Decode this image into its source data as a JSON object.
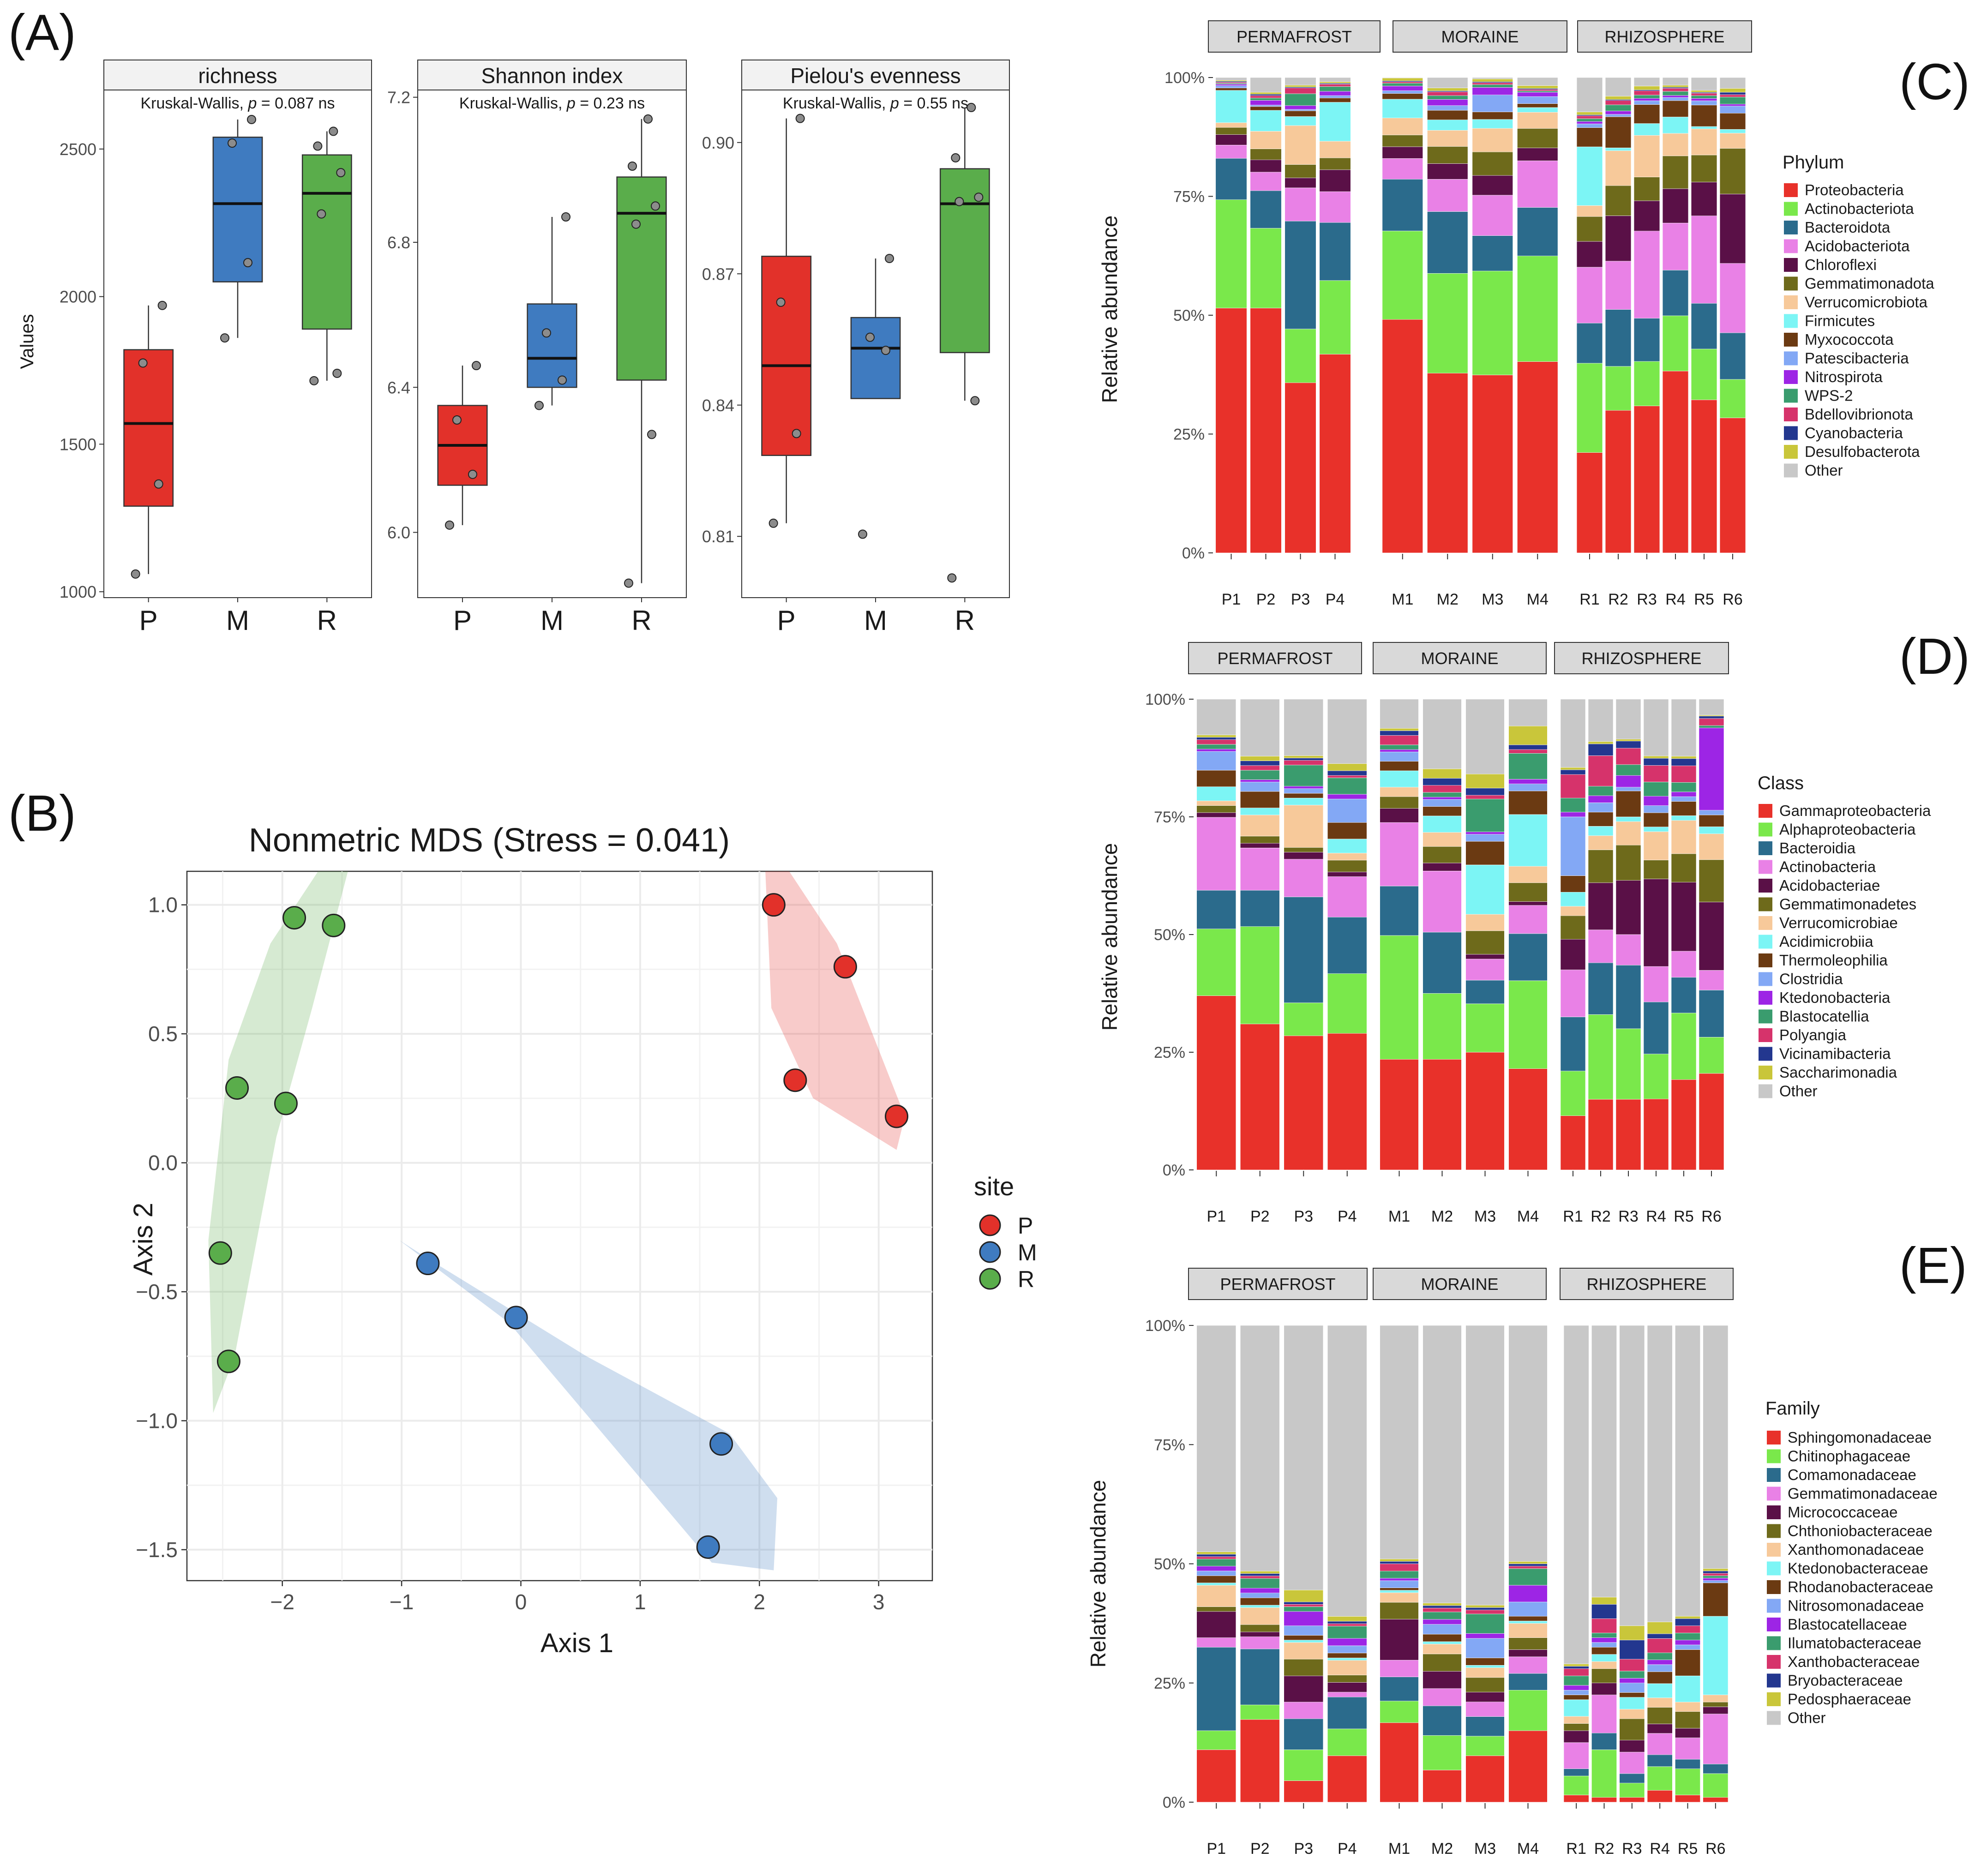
{
  "colors": {
    "P": "#e2312a",
    "M": "#3f7bc0",
    "R": "#5aad4b",
    "strip_bg": "#d9d9d9",
    "grid": "#ebebeb"
  },
  "panel_A": {
    "letter": "(A)",
    "ylabel": "Values",
    "groups": [
      "P",
      "M",
      "R"
    ],
    "facets": [
      {
        "title": "richness",
        "stat_prefix": "Kruskal-Wallis, ",
        "stat_p": "p",
        "stat_suffix": " = 0.087 ns",
        "ylim": [
          980,
          2700
        ],
        "yticks": [
          1000,
          1500,
          2000,
          2500
        ],
        "yticklabels": [
          "1000",
          "1500",
          "2000",
          "2500"
        ],
        "boxes": [
          {
            "group": "P",
            "q1": 1290,
            "median": 1570,
            "q3": 1820,
            "lo": 1060,
            "hi": 1970,
            "points": [
              1060,
              1365,
              1775,
              1970
            ]
          },
          {
            "group": "M",
            "q1": 2050,
            "median": 2315,
            "q3": 2540,
            "lo": 1860,
            "hi": 2600,
            "points": [
              1860,
              2115,
              2520,
              2600
            ]
          },
          {
            "group": "R",
            "q1": 1890,
            "median": 2350,
            "q3": 2480,
            "lo": 1715,
            "hi": 2560,
            "points": [
              1715,
              1740,
              2280,
              2420,
              2510,
              2560
            ]
          }
        ]
      },
      {
        "title": "Shannon index",
        "stat_prefix": "Kruskal-Wallis, ",
        "stat_p": "p",
        "stat_suffix": " = 0.23 ns",
        "ylim": [
          5.82,
          7.22
        ],
        "yticks": [
          6.0,
          6.4,
          6.8,
          7.2
        ],
        "yticklabels": [
          "6.0",
          "6.4",
          "6.8",
          "7.2"
        ],
        "boxes": [
          {
            "group": "P",
            "q1": 6.13,
            "median": 6.24,
            "q3": 6.35,
            "lo": 6.02,
            "hi": 6.46,
            "points": [
              6.02,
              6.16,
              6.31,
              6.46
            ]
          },
          {
            "group": "M",
            "q1": 6.4,
            "median": 6.48,
            "q3": 6.63,
            "lo": 6.35,
            "hi": 6.87,
            "points": [
              6.35,
              6.42,
              6.55,
              6.87
            ]
          },
          {
            "group": "R",
            "q1": 6.42,
            "median": 6.88,
            "q3": 6.98,
            "lo": 5.86,
            "hi": 7.14,
            "points": [
              5.86,
              6.27,
              6.85,
              6.9,
              7.01,
              7.14
            ]
          }
        ]
      },
      {
        "title": "Pielou's evenness",
        "stat_prefix": "Kruskal-Wallis, ",
        "stat_p": "p",
        "stat_suffix": " = 0.55 ns",
        "ylim": [
          0.796,
          0.912
        ],
        "yticks": [
          0.81,
          0.84,
          0.87,
          0.9
        ],
        "yticklabels": [
          "0.81",
          "0.84",
          "0.87",
          "0.90"
        ],
        "boxes": [
          {
            "group": "P",
            "q1": 0.8285,
            "median": 0.849,
            "q3": 0.874,
            "lo": 0.813,
            "hi": 0.9055,
            "points": [
              0.813,
              0.8335,
              0.8635,
              0.9055
            ]
          },
          {
            "group": "M",
            "q1": 0.8415,
            "median": 0.853,
            "q3": 0.86,
            "lo": 0.8415,
            "hi": 0.8735,
            "points": [
              0.8105,
              0.8525,
              0.8555,
              0.8735
            ]
          },
          {
            "group": "R",
            "q1": 0.852,
            "median": 0.886,
            "q3": 0.894,
            "lo": 0.841,
            "hi": 0.908,
            "points": [
              0.8005,
              0.841,
              0.8865,
              0.8875,
              0.8965,
              0.908
            ]
          }
        ]
      }
    ]
  },
  "panel_B": {
    "letter": "(B)",
    "title": "Nonmetric MDS (Stress = 0.041)",
    "xlabel": "Axis 1",
    "ylabel": "Axis 2",
    "xlim": [
      -2.8,
      3.45
    ],
    "ylim": [
      -1.62,
      1.13
    ],
    "xticks": [
      -2,
      -1,
      0,
      1,
      2,
      3
    ],
    "xticklabels": [
      "−2",
      "−1",
      "0",
      "1",
      "2",
      "3"
    ],
    "yticks": [
      -1.5,
      -1.0,
      -0.5,
      0.0,
      0.5,
      1.0
    ],
    "yticklabels": [
      "−1.5",
      "−1.0",
      "−0.5",
      "0.0",
      "0.5",
      "1.0"
    ],
    "legend_title": "site",
    "legend": [
      "P",
      "M",
      "R"
    ],
    "points": {
      "P": [
        [
          2.12,
          1.0
        ],
        [
          2.72,
          0.76
        ],
        [
          2.3,
          0.32
        ],
        [
          3.15,
          0.18
        ]
      ],
      "M": [
        [
          -0.78,
          -0.39
        ],
        [
          -0.04,
          -0.6
        ],
        [
          1.68,
          -1.09
        ],
        [
          1.57,
          -1.49
        ]
      ],
      "R": [
        [
          -1.9,
          0.95
        ],
        [
          -1.57,
          0.92
        ],
        [
          -2.38,
          0.29
        ],
        [
          -1.97,
          0.23
        ],
        [
          -2.52,
          -0.35
        ],
        [
          -2.45,
          -0.77
        ]
      ]
    }
  },
  "stacked_ylabel": "Relative abundance",
  "stacked_yticklabels": [
    "0%",
    "25%",
    "50%",
    "75%",
    "100%"
  ],
  "site_strips": [
    "PERMAFROST",
    "MORAINE",
    "RHIZOSPHERE"
  ],
  "sample_groups": [
    [
      "P1",
      "P2",
      "P3",
      "P4"
    ],
    [
      "M1",
      "M2",
      "M3",
      "M4"
    ],
    [
      "R1",
      "R2",
      "R3",
      "R4",
      "R5",
      "R6"
    ]
  ],
  "panel_C": {
    "letter": "(C)",
    "legend_title": "Phylum",
    "taxa": [
      "Proteobacteria",
      "Actinobacteriota",
      "Bacteroidota",
      "Acidobacteriota",
      "Chloroflexi",
      "Gemmatimonadota",
      "Verrucomicrobiota",
      "Firmicutes",
      "Myxococcota",
      "Patescibacteria",
      "Nitrospirota",
      "WPS-2",
      "Bdellovibrionota",
      "Cyanobacteria",
      "Desulfobacterota",
      "Other"
    ],
    "colors": [
      "#e8312a",
      "#7ae84b",
      "#2b6b8c",
      "#e981e6",
      "#5a1047",
      "#6e6a1b",
      "#f7c99a",
      "#7cf5f5",
      "#6b3a12",
      "#83a8f5",
      "#9d25e5",
      "#3a9c6e",
      "#d6336b",
      "#23378f",
      "#c9c63a",
      "#c8c8c8"
    ],
    "samples": [
      "P1",
      "P2",
      "P3",
      "P4",
      "M1",
      "M2",
      "M3",
      "M4",
      "R1",
      "R2",
      "R3",
      "R4",
      "R5",
      "R6"
    ],
    "values": [
      [
        51.5,
        22.8,
        8.7,
        2.8,
        2.2,
        1.5,
        1.0,
        6.8,
        0.5,
        0.5,
        0.3,
        0.2,
        0.2,
        0.2,
        0.2,
        0.6
      ],
      [
        51.5,
        16.8,
        7.9,
        3.9,
        2.6,
        2.3,
        3.7,
        4.4,
        0.8,
        0.3,
        1.0,
        0.5,
        0.5,
        0.3,
        0.4,
        3.1
      ],
      [
        35.8,
        11.3,
        22.7,
        7.0,
        2.1,
        2.8,
        8.2,
        1.9,
        1.2,
        0.3,
        0.8,
        2.5,
        1.2,
        0.2,
        0.4,
        1.6
      ],
      [
        41.8,
        15.5,
        12.2,
        6.5,
        4.6,
        2.5,
        3.5,
        8.2,
        0.9,
        0.5,
        0.9,
        1.0,
        0.5,
        0.2,
        0.3,
        0.9
      ],
      [
        49.6,
        18.8,
        11.0,
        4.4,
        2.5,
        2.5,
        3.6,
        4.0,
        1.2,
        0.6,
        1.0,
        0.6,
        0.3,
        0.2,
        0.6,
        0.1
      ],
      [
        37.8,
        21.0,
        13.0,
        6.8,
        3.3,
        3.6,
        3.4,
        2.2,
        2.0,
        1.0,
        1.3,
        0.8,
        0.8,
        0.2,
        0.6,
        2.2
      ],
      [
        37.8,
        22.1,
        7.5,
        8.6,
        4.2,
        5.0,
        5.0,
        1.9,
        1.6,
        3.6,
        1.6,
        0.6,
        0.4,
        0.2,
        0.6,
        0.3
      ],
      [
        40.2,
        22.2,
        10.2,
        9.8,
        2.7,
        4.1,
        3.4,
        1.0,
        0.8,
        1.5,
        0.9,
        0.3,
        0.3,
        0.2,
        0.6,
        1.7
      ],
      [
        21.0,
        18.7,
        8.4,
        11.7,
        5.4,
        5.2,
        2.3,
        12.3,
        4.0,
        0.8,
        0.5,
        0.6,
        0.6,
        0.2,
        0.6,
        7.2
      ],
      [
        29.8,
        9.2,
        11.9,
        10.1,
        9.5,
        6.3,
        7.3,
        0.6,
        6.5,
        0.5,
        0.7,
        1.3,
        0.9,
        0.2,
        0.7,
        3.9
      ],
      [
        31.0,
        9.4,
        9.1,
        18.4,
        6.4,
        5.0,
        8.8,
        2.5,
        4.0,
        0.8,
        0.5,
        0.7,
        0.9,
        0.2,
        0.8,
        1.8
      ],
      [
        35.5,
        10.8,
        8.9,
        9.2,
        6.7,
        6.4,
        4.4,
        3.2,
        3.2,
        0.6,
        0.4,
        0.8,
        0.6,
        0.2,
        0.4,
        1.5
      ],
      [
        32.2,
        10.7,
        9.6,
        18.4,
        7.1,
        5.7,
        5.5,
        0.5,
        4.5,
        0.9,
        0.5,
        0.6,
        0.5,
        0.2,
        0.4,
        2.7
      ],
      [
        28.4,
        8.1,
        9.8,
        14.6,
        14.6,
        9.6,
        3.2,
        0.8,
        3.4,
        1.5,
        0.4,
        1.5,
        0.5,
        0.5,
        0.8,
        2.3
      ]
    ]
  },
  "panel_D": {
    "letter": "(D)",
    "legend_title": "Class",
    "taxa": [
      "Gammaproteobacteria",
      "Alphaproteobacteria",
      "Bacteroidia",
      "Actinobacteria",
      "Acidobacteriae",
      "Gemmatimonadetes",
      "Verrucomicrobiae",
      "Acidimicrobiia",
      "Thermoleophilia",
      "Clostridia",
      "Ktedonobacteria",
      "Blastocatellia",
      "Polyangia",
      "Vicinamibacteria",
      "Saccharimonadia",
      "Other"
    ],
    "colors": [
      "#e8312a",
      "#7ae84b",
      "#2b6b8c",
      "#e981e6",
      "#5a1047",
      "#6e6a1b",
      "#f7c99a",
      "#7cf5f5",
      "#6b3a12",
      "#83a8f5",
      "#9d25e5",
      "#3a9c6e",
      "#d6336b",
      "#23378f",
      "#c9c63a",
      "#c8c8c8"
    ],
    "samples": [
      "P1",
      "P2",
      "P3",
      "P4",
      "M1",
      "M2",
      "M3",
      "M4",
      "R1",
      "R2",
      "R3",
      "R4",
      "R5",
      "R6"
    ],
    "values": [
      [
        37.0,
        14.2,
        8.2,
        15.5,
        1.0,
        1.5,
        1.0,
        3.0,
        3.5,
        4.0,
        0.5,
        1.0,
        1.0,
        0.5,
        0.5,
        7.6
      ],
      [
        31.0,
        20.7,
        7.7,
        9.0,
        1.0,
        1.5,
        4.5,
        1.5,
        3.5,
        2.0,
        0.5,
        2.0,
        1.0,
        1.0,
        1.0,
        12.1
      ],
      [
        28.5,
        7.0,
        22.5,
        8.0,
        1.5,
        1.0,
        9.0,
        1.5,
        1.0,
        1.0,
        0.5,
        4.5,
        1.0,
        0.5,
        0.5,
        12.0
      ],
      [
        29.0,
        12.7,
        12.0,
        8.6,
        1.0,
        2.5,
        1.5,
        3.0,
        3.5,
        5.0,
        1.0,
        3.5,
        0.5,
        1.0,
        1.5,
        13.7
      ],
      [
        23.5,
        26.3,
        10.5,
        13.5,
        3.0,
        2.5,
        2.0,
        3.5,
        2.0,
        2.0,
        0.5,
        1.0,
        2.0,
        1.0,
        0.5,
        6.2
      ],
      [
        23.5,
        14.0,
        13.0,
        13.0,
        1.7,
        3.5,
        3.0,
        3.5,
        2.0,
        1.5,
        0.5,
        1.0,
        1.5,
        1.5,
        2.0,
        14.8
      ],
      [
        25.0,
        10.3,
        5.0,
        4.5,
        1.0,
        5.0,
        3.5,
        10.5,
        5.0,
        1.5,
        0.5,
        7.0,
        0.8,
        1.5,
        3.0,
        15.9
      ],
      [
        21.5,
        18.7,
        10.0,
        6.0,
        0.8,
        4.0,
        3.5,
        11.0,
        5.0,
        1.5,
        1.0,
        5.5,
        0.8,
        1.0,
        4.0,
        5.7
      ],
      [
        11.5,
        9.5,
        11.5,
        10.0,
        6.5,
        5.0,
        2.0,
        3.0,
        3.5,
        12.5,
        1.0,
        3.0,
        5.0,
        1.0,
        0.5,
        14.5
      ],
      [
        15.0,
        18.0,
        11.0,
        7.0,
        10.0,
        7.0,
        3.0,
        2.0,
        3.0,
        2.0,
        1.5,
        2.0,
        6.5,
        2.5,
        0.5,
        9.0
      ],
      [
        15.0,
        15.0,
        13.5,
        6.5,
        11.5,
        7.5,
        5.0,
        1.0,
        5.5,
        0.8,
        2.5,
        2.3,
        3.5,
        1.5,
        0.4,
        8.5
      ],
      [
        15.0,
        9.5,
        11.0,
        7.5,
        18.5,
        4.0,
        6.0,
        1.0,
        3.0,
        1.5,
        2.0,
        3.0,
        3.5,
        1.5,
        0.5,
        12.0
      ],
      [
        19.0,
        14.0,
        7.5,
        5.5,
        14.5,
        6.0,
        7.0,
        1.0,
        3.0,
        1.0,
        1.0,
        2.0,
        3.5,
        1.5,
        0.5,
        12.0
      ],
      [
        20.5,
        7.7,
        10.0,
        4.2,
        14.5,
        9.0,
        5.5,
        1.5,
        2.5,
        1.0,
        17.5,
        0.5,
        1.5,
        0.5,
        0.2,
        3.4
      ]
    ]
  },
  "panel_E": {
    "letter": "(E)",
    "legend_title": "Family",
    "taxa": [
      "Sphingomonadaceae",
      "Chitinophagaceae",
      "Comamonadaceae",
      "Gemmatimonadaceae",
      "Micrococcaceae",
      "Chthoniobacteraceae",
      "Xanthomonadaceae",
      "Ktedonobacteraceae",
      "Rhodanobacteraceae",
      "Nitrosomonadaceae",
      "Blastocatellaceae",
      "Ilumatobacteraceae",
      "Xanthobacteraceae",
      "Bryobacteraceae",
      "Pedosphaeraceae",
      "Other"
    ],
    "colors": [
      "#e8312a",
      "#7ae84b",
      "#2b6b8c",
      "#e981e6",
      "#5a1047",
      "#6e6a1b",
      "#f7c99a",
      "#7cf5f5",
      "#6b3a12",
      "#83a8f5",
      "#9d25e5",
      "#3a9c6e",
      "#d6336b",
      "#23378f",
      "#c9c63a",
      "#c8c8c8"
    ],
    "samples": [
      "P1",
      "P2",
      "P3",
      "P4",
      "M1",
      "M2",
      "M3",
      "M4",
      "R1",
      "R2",
      "R3",
      "R4",
      "R5",
      "R6"
    ],
    "values": [
      [
        11.0,
        4.0,
        17.5,
        2.0,
        5.5,
        1.0,
        4.5,
        0.5,
        1.5,
        1.0,
        1.0,
        1.5,
        0.5,
        0.5,
        0.5,
        47.5
      ],
      [
        17.0,
        3.0,
        11.5,
        2.5,
        1.0,
        1.5,
        3.5,
        0.5,
        1.5,
        1.0,
        1.0,
        2.0,
        0.5,
        0.5,
        0.5,
        50.5
      ],
      [
        4.5,
        6.5,
        6.5,
        3.5,
        5.5,
        3.5,
        3.5,
        0.5,
        1.0,
        2.0,
        3.0,
        1.0,
        0.5,
        0.5,
        2.5,
        55.5
      ],
      [
        9.5,
        5.5,
        6.5,
        1.0,
        2.0,
        1.5,
        3.0,
        0.5,
        1.0,
        1.5,
        1.5,
        2.5,
        0.5,
        0.5,
        1.0,
        59.5
      ],
      [
        16.5,
        4.5,
        5.0,
        3.5,
        8.5,
        3.5,
        2.0,
        0.5,
        0.5,
        1.5,
        0.5,
        1.5,
        1.5,
        0.5,
        0.5,
        48.5
      ],
      [
        6.5,
        7.0,
        6.0,
        3.5,
        3.5,
        3.5,
        2.0,
        0.5,
        1.5,
        2.0,
        1.0,
        1.5,
        0.8,
        0.5,
        0.5,
        56.2
      ],
      [
        9.5,
        4.0,
        4.0,
        3.0,
        2.0,
        3.0,
        2.0,
        0.5,
        1.5,
        4.0,
        1.0,
        4.0,
        0.8,
        0.5,
        0.5,
        57.2
      ],
      [
        15.0,
        8.5,
        3.5,
        3.5,
        1.5,
        2.5,
        3.0,
        0.5,
        1.0,
        3.0,
        3.5,
        3.5,
        0.5,
        0.5,
        0.5,
        49.5
      ],
      [
        1.5,
        4.0,
        1.5,
        5.5,
        2.5,
        1.5,
        1.5,
        3.5,
        1.0,
        1.0,
        1.0,
        2.0,
        1.5,
        0.5,
        0.5,
        71.0
      ],
      [
        1.0,
        10.0,
        3.5,
        8.0,
        2.5,
        3.0,
        1.5,
        1.5,
        1.5,
        1.0,
        1.0,
        1.0,
        3.0,
        3.0,
        1.5,
        57.0
      ],
      [
        1.0,
        3.0,
        2.0,
        4.5,
        2.5,
        4.5,
        2.0,
        2.5,
        1.0,
        2.0,
        1.0,
        1.5,
        2.5,
        4.0,
        3.0,
        63.0
      ],
      [
        2.5,
        5.0,
        2.5,
        4.5,
        2.0,
        3.5,
        2.0,
        3.0,
        2.5,
        1.5,
        1.0,
        1.5,
        3.0,
        1.0,
        2.5,
        62.5
      ],
      [
        1.5,
        5.5,
        2.0,
        4.5,
        2.0,
        3.5,
        2.0,
        5.5,
        5.5,
        1.0,
        1.0,
        1.5,
        1.5,
        1.5,
        0.5,
        61.0
      ],
      [
        1.0,
        5.0,
        2.0,
        10.5,
        1.5,
        1.0,
        1.5,
        16.5,
        7.0,
        0.5,
        0.5,
        0.5,
        0.5,
        0.5,
        0.5,
        51.0
      ]
    ]
  }
}
